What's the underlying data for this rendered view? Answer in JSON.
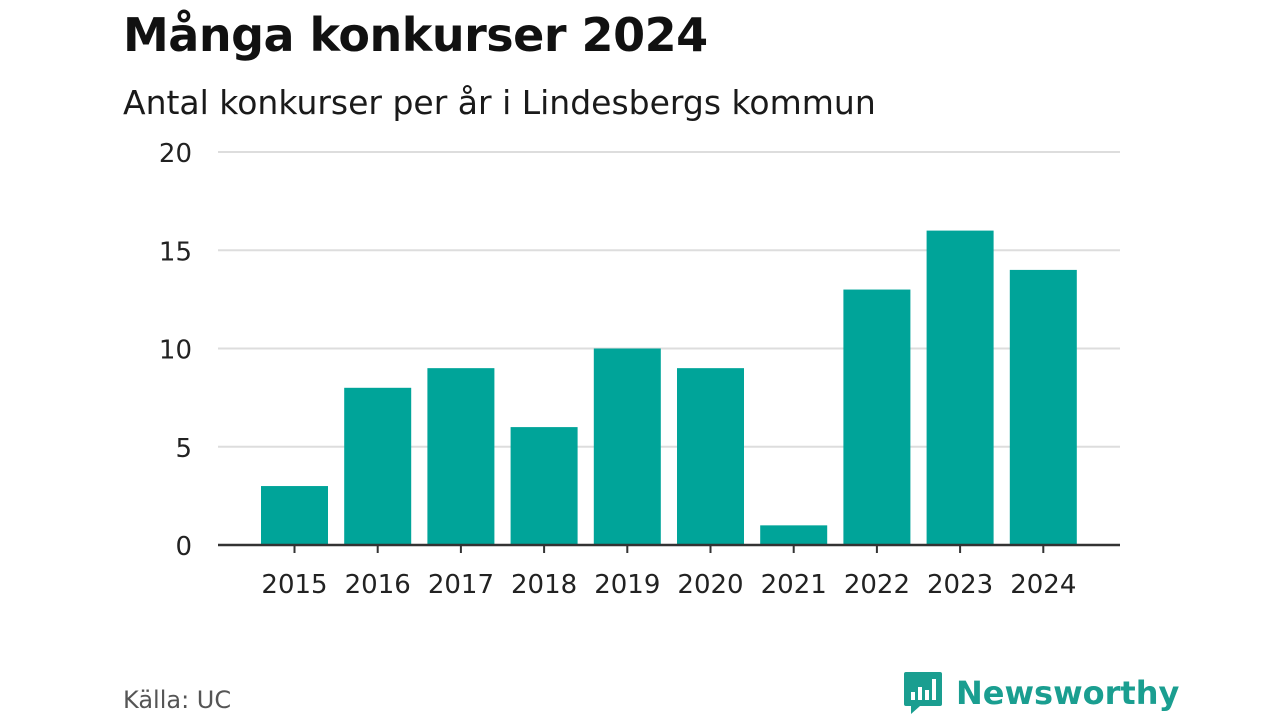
{
  "title": "Många konkurser 2024",
  "subtitle": "Antal konkurser per år i Lindesbergs kommun",
  "source": "Källa: UC",
  "brand": {
    "name": "Newsworthy",
    "icon": "newsworthy-logo-icon",
    "color": "#1a9e90"
  },
  "colors": {
    "bar": "#00a499",
    "grid": "#dddddd",
    "axis": "#333333"
  },
  "chart_data": {
    "type": "bar",
    "categories": [
      "2015",
      "2016",
      "2017",
      "2018",
      "2019",
      "2020",
      "2021",
      "2022",
      "2023",
      "2024"
    ],
    "values": [
      3,
      8,
      9,
      6,
      10,
      9,
      1,
      13,
      16,
      14
    ],
    "title": "Många konkurser 2024",
    "subtitle": "Antal konkurser per år i Lindesbergs kommun",
    "xlabel": "",
    "ylabel": "",
    "ylim": [
      0,
      20
    ],
    "yticks": [
      0,
      5,
      10,
      15,
      20
    ],
    "grid": true,
    "legend": "none"
  }
}
